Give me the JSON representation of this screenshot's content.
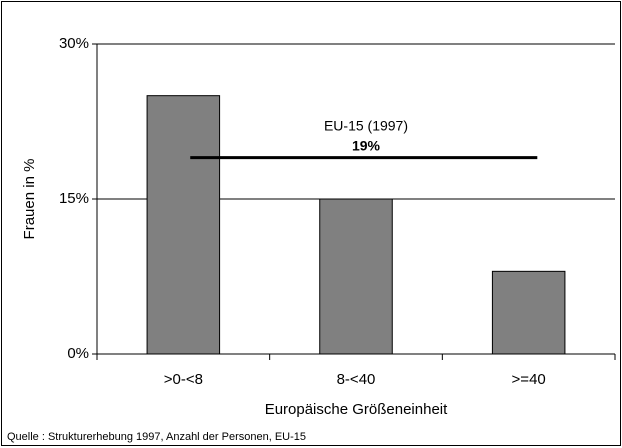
{
  "chart_data": {
    "type": "bar",
    "categories": [
      ">0-<8",
      "8-<40",
      ">=40"
    ],
    "values": [
      25,
      15,
      8
    ],
    "color": "#808080",
    "ylim": [
      0,
      30
    ],
    "yticks": [
      {
        "value": 0,
        "label": "0%"
      },
      {
        "value": 15,
        "label": "15%"
      },
      {
        "value": 30,
        "label": "30%"
      }
    ],
    "grid": true,
    "y_label": "Frauen in %",
    "x_label": "Europäische Größeneinheit",
    "reference_line": {
      "name": "EU-15 (1997)",
      "value": 19,
      "value_label": "19%"
    },
    "source": "Quelle : Strukturerhebung 1997, Anzahl der Personen, EU-15"
  }
}
